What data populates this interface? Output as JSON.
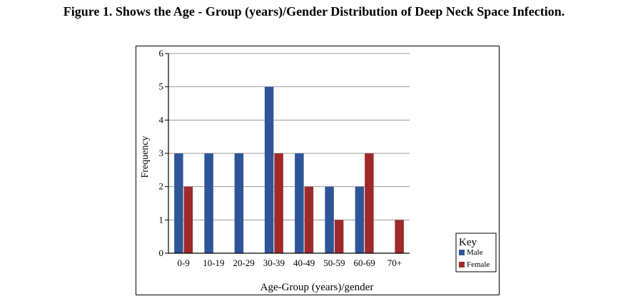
{
  "figure_caption": "Figure 1. Shows the Age - Group (years)/Gender Distribution of Deep Neck Space Infection.",
  "chart_data": {
    "type": "bar",
    "categories": [
      "0-9",
      "10-19",
      "20-29",
      "30-39",
      "40-49",
      "50-59",
      "60-69",
      "70+"
    ],
    "series": [
      {
        "name": "Male",
        "values": [
          3,
          3,
          3,
          5,
          3,
          2,
          2,
          0
        ],
        "color": "#2f5597"
      },
      {
        "name": "Female",
        "values": [
          2,
          0,
          0,
          3,
          2,
          1,
          3,
          1
        ],
        "color": "#9e2a2b"
      }
    ],
    "title": "",
    "xlabel": "Age-Group (years)/gender",
    "ylabel": "Frequency",
    "ylim": [
      0,
      6
    ],
    "yticks": [
      0,
      1,
      2,
      3,
      4,
      5,
      6
    ],
    "grid": true,
    "legend": {
      "title": "Key",
      "placement": "bottom-right"
    }
  }
}
